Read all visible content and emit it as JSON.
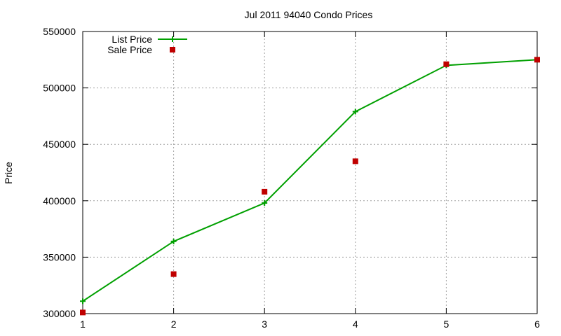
{
  "chart_data": {
    "type": "line",
    "title": "Jul 2011 94040 Condo Prices",
    "xlabel": "",
    "ylabel": "Price",
    "x": [
      1,
      2,
      3,
      4,
      5,
      6
    ],
    "xlim": [
      1,
      6
    ],
    "ylim": [
      300000,
      550000
    ],
    "xticks": [
      1,
      2,
      3,
      4,
      5,
      6
    ],
    "yticks": [
      300000,
      350000,
      400000,
      450000,
      500000,
      550000
    ],
    "grid": true,
    "legend_position": "top-left",
    "series": [
      {
        "name": "List Price",
        "style": "line-with-plus-markers",
        "color": "#00a000",
        "values": [
          311000,
          364000,
          398000,
          479000,
          520000,
          525000
        ]
      },
      {
        "name": "Sale Price",
        "style": "square-markers",
        "color": "#c00000",
        "values": [
          301000,
          335000,
          408000,
          435000,
          521000,
          525000
        ]
      }
    ]
  }
}
